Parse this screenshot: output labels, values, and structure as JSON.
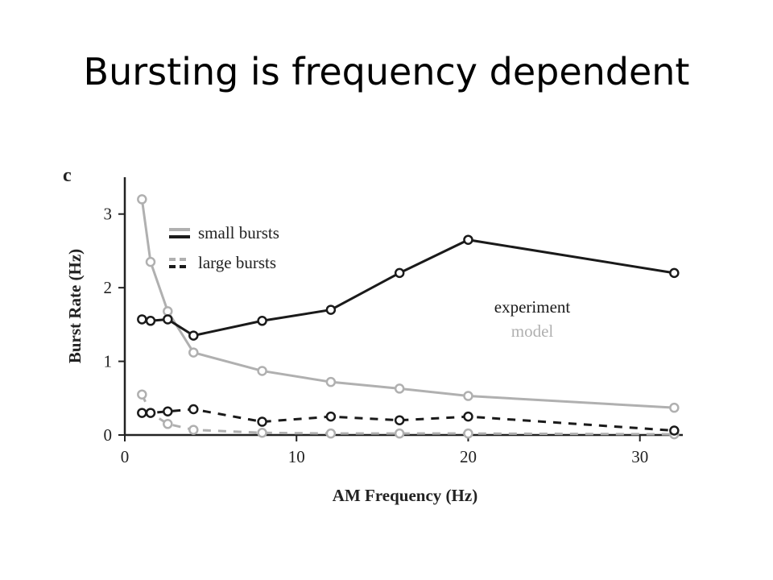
{
  "slide": {
    "title": "Bursting is frequency dependent"
  },
  "chart_data": {
    "type": "line",
    "panel_letter": "c",
    "xlabel": "AM Frequency (Hz)",
    "ylabel": "Burst Rate (Hz)",
    "xlim": [
      0,
      32.5
    ],
    "ylim": [
      0,
      3.5
    ],
    "x_ticks": [
      0,
      10,
      20,
      30
    ],
    "y_ticks": [
      0,
      1,
      2,
      3
    ],
    "grid": false,
    "legend_position": "top-left",
    "legend_style": [
      {
        "label": "small bursts",
        "style": "solid"
      },
      {
        "label": "large bursts",
        "style": "dashed"
      }
    ],
    "legend_source": [
      {
        "label": "experiment",
        "color": "#1a1a1a"
      },
      {
        "label": "model",
        "color": "#b0b0b0"
      }
    ],
    "colors": {
      "experiment": "#1a1a1a",
      "model": "#b0b0b0"
    },
    "series": [
      {
        "source": "model",
        "style": "solid",
        "x": [
          1,
          1.5,
          2.5,
          4,
          8,
          12,
          16,
          20,
          32
        ],
        "y": [
          3.2,
          2.35,
          1.68,
          1.12,
          0.87,
          0.72,
          0.63,
          0.53,
          0.37
        ]
      },
      {
        "source": "experiment",
        "style": "solid",
        "x": [
          1,
          1.5,
          2.5,
          4,
          8,
          12,
          16,
          20,
          32
        ],
        "y": [
          1.57,
          1.55,
          1.57,
          1.35,
          1.55,
          1.7,
          2.2,
          2.65,
          2.2
        ]
      },
      {
        "source": "model",
        "style": "dashed",
        "x": [
          1,
          1.5,
          2.5,
          4,
          8,
          12,
          16,
          20,
          32
        ],
        "y": [
          0.55,
          0.3,
          0.15,
          0.07,
          0.03,
          0.02,
          0.02,
          0.02,
          0.01
        ]
      },
      {
        "source": "experiment",
        "style": "dashed",
        "x": [
          1,
          1.5,
          2.5,
          4,
          8,
          12,
          16,
          20,
          32
        ],
        "y": [
          0.3,
          0.3,
          0.32,
          0.35,
          0.18,
          0.25,
          0.2,
          0.25,
          0.06
        ]
      }
    ]
  }
}
